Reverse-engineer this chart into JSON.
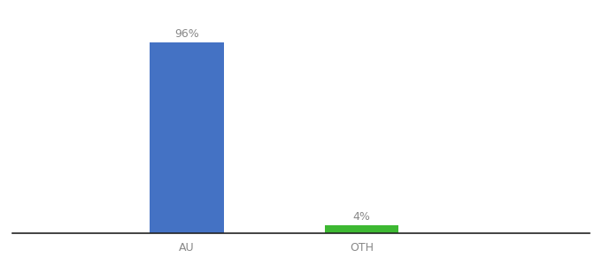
{
  "categories": [
    "AU",
    "OTH"
  ],
  "values": [
    96,
    4
  ],
  "bar_colors": [
    "#4472c4",
    "#3db832"
  ],
  "bar_labels": [
    "96%",
    "4%"
  ],
  "ylim": [
    0,
    108
  ],
  "background_color": "#ffffff",
  "label_fontsize": 9,
  "tick_fontsize": 9,
  "bar_width": 0.55,
  "xlim": [
    -0.8,
    3.5
  ],
  "x_positions": [
    0.5,
    1.8
  ]
}
